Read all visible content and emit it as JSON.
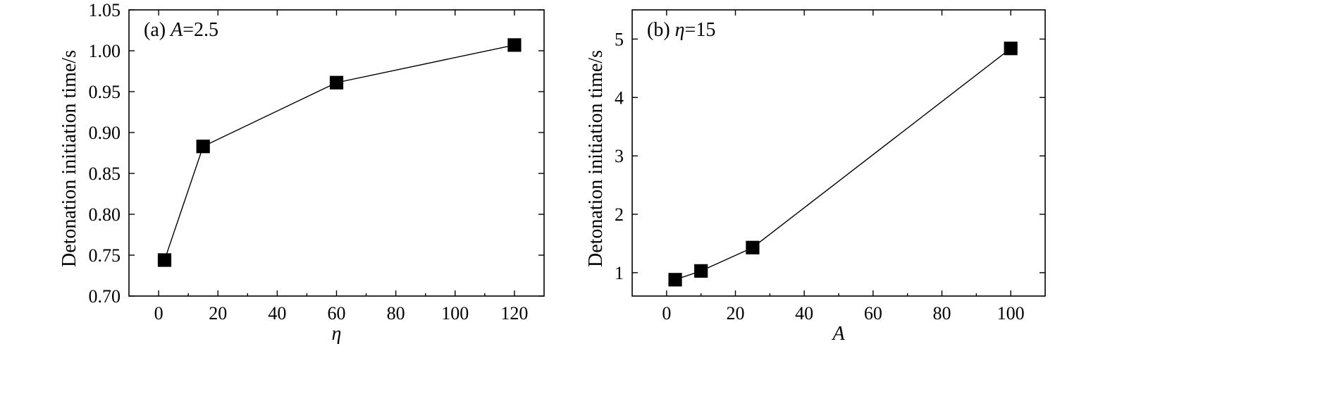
{
  "chart_data": [
    {
      "type": "line",
      "panel_label": {
        "prefix": "(a) ",
        "var": "A",
        "rest": "=2.5"
      },
      "xlabel": "η",
      "ylabel": "Detonation initiation time/s",
      "xlim": [
        -10,
        130
      ],
      "ylim": [
        0.7,
        1.05
      ],
      "xticks": [
        0,
        20,
        40,
        60,
        80,
        100,
        120
      ],
      "yticks": [
        0.7,
        0.75,
        0.8,
        0.85,
        0.9,
        0.95,
        1.0,
        1.05
      ],
      "ytick_labels": [
        "0.70",
        "0.75",
        "0.80",
        "0.85",
        "0.90",
        "0.95",
        "1.00",
        "1.05"
      ],
      "grid": false,
      "marker": "square",
      "x": [
        2,
        15,
        60,
        120
      ],
      "y": [
        0.744,
        0.883,
        0.961,
        1.007
      ]
    },
    {
      "type": "line",
      "panel_label": {
        "prefix": "(b) ",
        "var": "η",
        "rest": "=15"
      },
      "xlabel": "A",
      "ylabel": "Detonation initiation time/s",
      "xlim": [
        -10,
        110
      ],
      "ylim": [
        0.6,
        5.5
      ],
      "xticks": [
        0,
        20,
        40,
        60,
        80,
        100
      ],
      "yticks": [
        1,
        2,
        3,
        4,
        5
      ],
      "ytick_labels": [
        "1",
        "2",
        "3",
        "4",
        "5"
      ],
      "grid": false,
      "marker": "square",
      "x": [
        2.5,
        10,
        25,
        100
      ],
      "y": [
        0.88,
        1.03,
        1.43,
        4.84
      ]
    }
  ]
}
